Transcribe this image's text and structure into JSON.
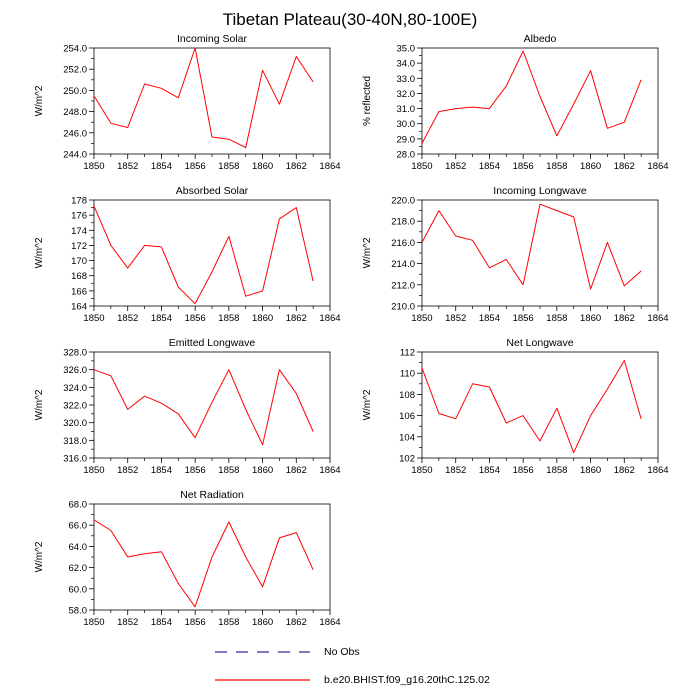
{
  "page_title": "Tibetan Plateau(30-40N,80-100E)",
  "legend": {
    "no_obs_label": "No Obs",
    "series_label": "b.e20.BHIST.f09_g16.20thC.125.02",
    "no_obs_color": "#2f2f9e",
    "series_color": "#ff0000"
  },
  "chart_data": [
    {
      "type": "line",
      "title": "Incoming Solar",
      "ylabel": "W/m^2",
      "xlabel": "",
      "xlim": [
        1850,
        1864
      ],
      "xticks": [
        1850,
        1852,
        1854,
        1856,
        1858,
        1860,
        1862,
        1864
      ],
      "ylim": [
        244.0,
        254.0
      ],
      "yticks": [
        244.0,
        246.0,
        248.0,
        250.0,
        252.0,
        254.0
      ],
      "decimals": 1,
      "x": [
        1850,
        1851,
        1852,
        1853,
        1854,
        1855,
        1856,
        1857,
        1858,
        1859,
        1860,
        1861,
        1862,
        1863
      ],
      "values": [
        249.5,
        246.9,
        246.5,
        250.6,
        250.2,
        249.3,
        254.0,
        245.6,
        245.4,
        244.6,
        251.9,
        248.7,
        253.2,
        250.8
      ]
    },
    {
      "type": "line",
      "title": "Albedo",
      "ylabel": "% reflected",
      "xlabel": "",
      "xlim": [
        1850,
        1864
      ],
      "xticks": [
        1850,
        1852,
        1854,
        1856,
        1858,
        1860,
        1862,
        1864
      ],
      "ylim": [
        28.0,
        35.0
      ],
      "yticks": [
        28.0,
        29.0,
        30.0,
        31.0,
        32.0,
        33.0,
        34.0,
        35.0
      ],
      "decimals": 1,
      "x": [
        1850,
        1851,
        1852,
        1853,
        1854,
        1855,
        1856,
        1857,
        1858,
        1859,
        1860,
        1861,
        1862,
        1863
      ],
      "values": [
        28.7,
        30.8,
        31.0,
        31.1,
        31.0,
        32.5,
        34.8,
        31.8,
        29.2,
        31.3,
        33.5,
        29.7,
        30.1,
        32.9
      ]
    },
    {
      "type": "line",
      "title": "Absorbed Solar",
      "ylabel": "W/m^2",
      "xlabel": "",
      "xlim": [
        1850,
        1864
      ],
      "xticks": [
        1850,
        1852,
        1854,
        1856,
        1858,
        1860,
        1862,
        1864
      ],
      "ylim": [
        164,
        178
      ],
      "yticks": [
        164,
        166,
        168,
        170,
        172,
        174,
        176,
        178
      ],
      "decimals": 0,
      "x": [
        1850,
        1851,
        1852,
        1853,
        1854,
        1855,
        1856,
        1857,
        1858,
        1859,
        1860,
        1861,
        1862,
        1863
      ],
      "values": [
        177.2,
        172.0,
        169.0,
        172.0,
        171.8,
        166.5,
        164.3,
        168.5,
        173.2,
        165.3,
        166.0,
        175.5,
        177.0,
        167.3
      ]
    },
    {
      "type": "line",
      "title": "Incoming Longwave",
      "ylabel": "W/m^2",
      "xlabel": "",
      "xlim": [
        1850,
        1864
      ],
      "xticks": [
        1850,
        1852,
        1854,
        1856,
        1858,
        1860,
        1862,
        1864
      ],
      "ylim": [
        210.0,
        220.0
      ],
      "yticks": [
        210.0,
        212.0,
        214.0,
        216.0,
        218.0,
        220.0
      ],
      "decimals": 1,
      "x": [
        1850,
        1851,
        1852,
        1853,
        1854,
        1855,
        1856,
        1857,
        1858,
        1859,
        1860,
        1861,
        1862,
        1863
      ],
      "values": [
        216.0,
        219.0,
        216.6,
        216.2,
        213.6,
        214.4,
        212.0,
        219.6,
        219.0,
        218.4,
        211.6,
        216.0,
        211.9,
        213.3
      ]
    },
    {
      "type": "line",
      "title": "Emitted Longwave",
      "ylabel": "W/m^2",
      "xlabel": "",
      "xlim": [
        1850,
        1864
      ],
      "xticks": [
        1850,
        1852,
        1854,
        1856,
        1858,
        1860,
        1862,
        1864
      ],
      "ylim": [
        316.0,
        328.0
      ],
      "yticks": [
        316.0,
        318.0,
        320.0,
        322.0,
        324.0,
        326.0,
        328.0
      ],
      "decimals": 1,
      "x": [
        1850,
        1851,
        1852,
        1853,
        1854,
        1855,
        1856,
        1857,
        1858,
        1859,
        1860,
        1861,
        1862,
        1863
      ],
      "values": [
        326.0,
        325.3,
        321.5,
        323.0,
        322.2,
        321.0,
        318.3,
        322.3,
        326.0,
        321.5,
        317.5,
        326.0,
        323.3,
        319.0
      ]
    },
    {
      "type": "line",
      "title": "Net Longwave",
      "ylabel": "W/m^2",
      "xlabel": "",
      "xlim": [
        1850,
        1864
      ],
      "xticks": [
        1850,
        1852,
        1854,
        1856,
        1858,
        1860,
        1862,
        1864
      ],
      "ylim": [
        102,
        112
      ],
      "yticks": [
        102,
        104,
        106,
        108,
        110,
        112
      ],
      "decimals": 0,
      "x": [
        1850,
        1851,
        1852,
        1853,
        1854,
        1855,
        1856,
        1857,
        1858,
        1859,
        1860,
        1861,
        1862,
        1863
      ],
      "values": [
        110.5,
        106.2,
        105.7,
        109.0,
        108.7,
        105.3,
        106.0,
        103.6,
        106.7,
        102.5,
        106.0,
        108.5,
        111.2,
        105.7
      ]
    },
    {
      "type": "line",
      "title": "Net Radiation",
      "ylabel": "W/m^2",
      "xlabel": "",
      "xlim": [
        1850,
        1864
      ],
      "xticks": [
        1850,
        1852,
        1854,
        1856,
        1858,
        1860,
        1862,
        1864
      ],
      "ylim": [
        58.0,
        68.0
      ],
      "yticks": [
        58.0,
        60.0,
        62.0,
        64.0,
        66.0,
        68.0
      ],
      "decimals": 1,
      "x": [
        1850,
        1851,
        1852,
        1853,
        1854,
        1855,
        1856,
        1857,
        1858,
        1859,
        1860,
        1861,
        1862,
        1863
      ],
      "values": [
        66.5,
        65.5,
        63.0,
        63.3,
        63.5,
        60.5,
        58.3,
        63.0,
        66.3,
        63.0,
        60.2,
        64.8,
        65.3,
        61.8
      ]
    }
  ]
}
